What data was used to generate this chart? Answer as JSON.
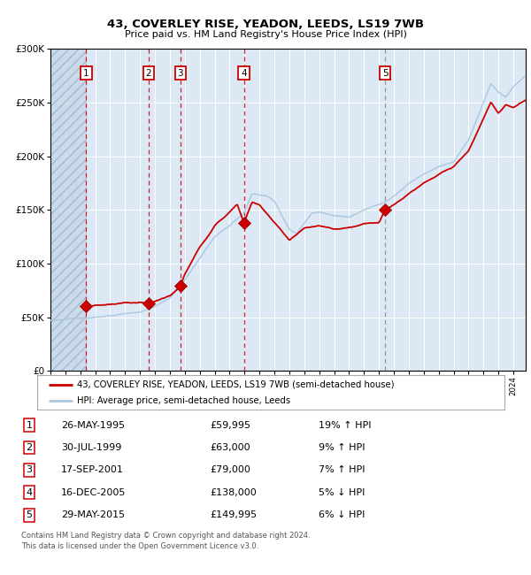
{
  "title1": "43, COVERLEY RISE, YEADON, LEEDS, LS19 7WB",
  "title2": "Price paid vs. HM Land Registry's House Price Index (HPI)",
  "legend1": "43, COVERLEY RISE, YEADON, LEEDS, LS19 7WB (semi-detached house)",
  "legend2": "HPI: Average price, semi-detached house, Leeds",
  "footer": "Contains HM Land Registry data © Crown copyright and database right 2024.\nThis data is licensed under the Open Government Licence v3.0.",
  "sales": [
    {
      "num": 1,
      "date_label": "26-MAY-1995",
      "price": 59995,
      "year": 1995.4,
      "pct": "19%",
      "dir": "↑"
    },
    {
      "num": 2,
      "date_label": "30-JUL-1999",
      "price": 63000,
      "year": 1999.58,
      "pct": "9%",
      "dir": "↑"
    },
    {
      "num": 3,
      "date_label": "17-SEP-2001",
      "price": 79000,
      "year": 2001.71,
      "pct": "7%",
      "dir": "↑"
    },
    {
      "num": 4,
      "date_label": "16-DEC-2005",
      "price": 138000,
      "year": 2005.96,
      "pct": "5%",
      "dir": "↓"
    },
    {
      "num": 5,
      "date_label": "29-MAY-2015",
      "price": 149995,
      "year": 2015.41,
      "pct": "6%",
      "dir": "↓"
    }
  ],
  "table_rows": [
    [
      "1",
      "26-MAY-1995",
      "£59,995",
      "19% ↑ HPI"
    ],
    [
      "2",
      "30-JUL-1999",
      "£63,000",
      "9% ↑ HPI"
    ],
    [
      "3",
      "17-SEP-2001",
      "£79,000",
      "7% ↑ HPI"
    ],
    [
      "4",
      "16-DEC-2005",
      "£138,000",
      "5% ↓ HPI"
    ],
    [
      "5",
      "29-MAY-2015",
      "£149,995",
      "6% ↓ HPI"
    ]
  ],
  "ylim": [
    0,
    300000
  ],
  "xlim_start": 1993.0,
  "xlim_end": 2024.83,
  "hatch_end": 1995.4,
  "red_vlines": [
    1995.4,
    1999.58,
    2001.71,
    2005.96
  ],
  "grey_vline": 2015.41,
  "bg_color": "#dce9f5",
  "grid_color": "#ffffff",
  "red_line_color": "#cc0000",
  "blue_line_color": "#aac8e0",
  "marker_color": "#cc0000",
  "vline_red_color": "#cc0000",
  "vline_grey_color": "#888888",
  "hpi_anchors": {
    "1993.0": 47000,
    "1994.0": 48000,
    "1995.4": 49500,
    "1997.0": 51000,
    "1999.0": 55000,
    "2000.0": 60000,
    "2001.0": 68000,
    "2002.0": 85000,
    "2003.0": 105000,
    "2004.0": 125000,
    "2005.0": 135000,
    "2006.0": 148000,
    "2006.5": 165000,
    "2007.5": 163000,
    "2008.0": 158000,
    "2009.0": 132000,
    "2009.5": 128000,
    "2010.5": 147000,
    "2011.0": 148000,
    "2012.0": 145000,
    "2013.0": 143000,
    "2014.0": 150000,
    "2015.0": 155000,
    "2015.41": 157000,
    "2016.0": 163000,
    "2017.0": 175000,
    "2018.0": 183000,
    "2019.0": 190000,
    "2020.0": 195000,
    "2021.0": 215000,
    "2022.0": 250000,
    "2022.5": 268000,
    "2023.0": 260000,
    "2023.5": 255000,
    "2024.0": 265000,
    "2024.83": 275000
  },
  "red_anchors": {
    "1995.4": 59995,
    "1996.0": 61000,
    "1997.0": 62000,
    "1998.0": 63500,
    "1999.0": 64000,
    "1999.58": 63000,
    "2000.0": 64500,
    "2001.0": 70000,
    "2001.71": 79000,
    "2002.0": 90000,
    "2003.0": 115000,
    "2004.0": 135000,
    "2005.0": 148000,
    "2005.5": 155000,
    "2005.96": 138000,
    "2006.5": 157000,
    "2007.0": 155000,
    "2008.0": 138000,
    "2009.0": 122000,
    "2010.0": 133000,
    "2011.0": 135000,
    "2012.0": 132000,
    "2013.0": 133000,
    "2014.0": 137000,
    "2015.0": 138000,
    "2015.41": 149995,
    "2016.0": 155000,
    "2017.0": 165000,
    "2018.0": 175000,
    "2019.0": 183000,
    "2020.0": 190000,
    "2021.0": 205000,
    "2022.0": 235000,
    "2022.5": 250000,
    "2023.0": 240000,
    "2023.5": 248000,
    "2024.0": 245000,
    "2024.83": 252000
  }
}
